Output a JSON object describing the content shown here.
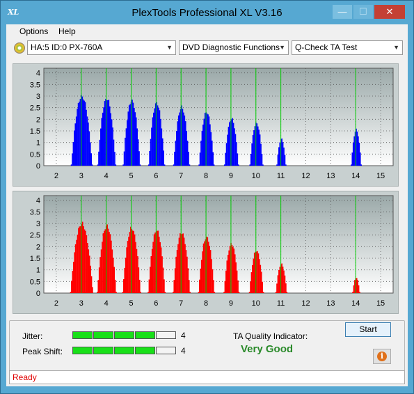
{
  "window": {
    "title": "PlexTools Professional XL V3.16",
    "icon_name": "xl-app-icon",
    "controls": {
      "minimize": "—",
      "maximize": "☐",
      "close": "✕"
    }
  },
  "menu": {
    "options": "Options",
    "help": "Help"
  },
  "toolbar": {
    "drive": "HA:5 ID:0  PX-760A",
    "function": "DVD Diagnostic Functions",
    "test": "Q-Check TA Test"
  },
  "charts": {
    "x_ticks": [
      "2",
      "3",
      "4",
      "5",
      "6",
      "7",
      "8",
      "9",
      "10",
      "11",
      "12",
      "13",
      "14",
      "15"
    ],
    "y_ticks": [
      "4",
      "3.5",
      "3",
      "2.5",
      "2",
      "1.5",
      "1",
      "0.5",
      "0"
    ],
    "green_lines": [
      3,
      4,
      5,
      6,
      7,
      8,
      9,
      10,
      11,
      14
    ],
    "colors": {
      "top": "#0000ff",
      "bottom": "#ff0000",
      "marker": "#00cc00"
    }
  },
  "chart_data": [
    {
      "type": "bar",
      "title": "",
      "xlim": [
        1.5,
        15.5
      ],
      "ylim": [
        0,
        4.2
      ],
      "peaks": [
        {
          "x": 3,
          "height": 3.1,
          "width": 0.42
        },
        {
          "x": 4,
          "height": 3.0,
          "width": 0.36
        },
        {
          "x": 5,
          "height": 2.9,
          "width": 0.34
        },
        {
          "x": 6,
          "height": 2.8,
          "width": 0.32
        },
        {
          "x": 7,
          "height": 2.6,
          "width": 0.32
        },
        {
          "x": 8,
          "height": 2.4,
          "width": 0.3
        },
        {
          "x": 9,
          "height": 2.1,
          "width": 0.28
        },
        {
          "x": 10,
          "height": 1.9,
          "width": 0.26
        },
        {
          "x": 11,
          "height": 1.2,
          "width": 0.18
        },
        {
          "x": 14,
          "height": 1.6,
          "width": 0.2
        }
      ]
    },
    {
      "type": "bar",
      "title": "",
      "xlim": [
        1.5,
        15.5
      ],
      "ylim": [
        0,
        4.2
      ],
      "peaks": [
        {
          "x": 3,
          "height": 3.1,
          "width": 0.45
        },
        {
          "x": 4,
          "height": 3.0,
          "width": 0.38
        },
        {
          "x": 5,
          "height": 2.9,
          "width": 0.36
        },
        {
          "x": 6,
          "height": 2.8,
          "width": 0.34
        },
        {
          "x": 7,
          "height": 2.7,
          "width": 0.34
        },
        {
          "x": 8,
          "height": 2.5,
          "width": 0.32
        },
        {
          "x": 9,
          "height": 2.2,
          "width": 0.3
        },
        {
          "x": 10,
          "height": 1.9,
          "width": 0.28
        },
        {
          "x": 11,
          "height": 1.3,
          "width": 0.22
        },
        {
          "x": 14,
          "height": 0.7,
          "width": 0.14
        }
      ]
    }
  ],
  "metrics": {
    "jitter_label": "Jitter:",
    "jitter_value": "4",
    "jitter_level": 4,
    "peak_label": "Peak Shift:",
    "peak_value": "4",
    "peak_level": 4,
    "segments_total": 5
  },
  "ta_quality": {
    "label": "TA Quality Indicator:",
    "value": "Very Good"
  },
  "buttons": {
    "start": "Start",
    "info": "i"
  },
  "status": "Ready"
}
